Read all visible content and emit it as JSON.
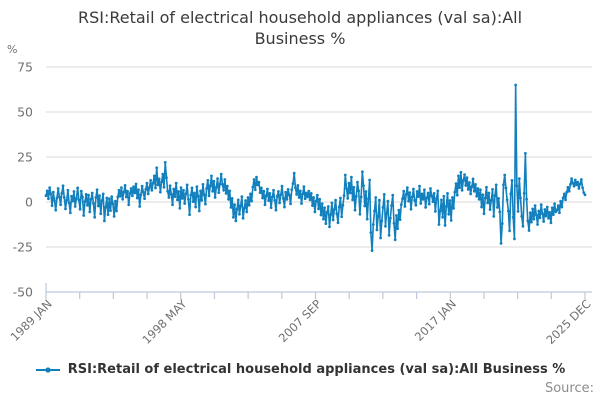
{
  "title_lines": [
    "RSI:Retail of electrical household appliances (val sa):All",
    "Business %"
  ],
  "y_axis_unit": "%",
  "legend": {
    "label": "RSI:Retail of electrical household appliances (val sa):All Business %"
  },
  "footer": {
    "source_label": "Source:"
  },
  "colors": {
    "series": "#1380be",
    "grid": "#d9d9d9",
    "axis": "#bcc9da",
    "tick_text": "#707070",
    "title_text": "#3a3a3a",
    "legend_text": "#333333",
    "source_text": "#8c8c8c"
  },
  "chart_data": {
    "type": "line",
    "title": "RSI:Retail of electrical household appliances (val sa):All Business %",
    "series_name": "RSI:Retail of electrical household appliances (val sa):All Business %",
    "x_start": "1989-01",
    "x_end": "2025-12",
    "frequency": "monthly",
    "x_tick_labels": [
      "1989 JAN",
      "1998 MAY",
      "2007 SEP",
      "2017 JAN",
      "2025 DEC"
    ],
    "x_total_ticks": 17,
    "x_label_every": 4,
    "y_ticks": [
      75,
      50,
      25,
      0,
      -25,
      -50
    ],
    "ylim": [
      -50,
      75
    ],
    "grid": true,
    "legend_position": "bottom",
    "values": [
      3.5,
      6.2,
      1.8,
      8.0,
      4.5,
      -2.0,
      5.5,
      0.8,
      -4.5,
      2.2,
      7.5,
      3.0,
      -1.5,
      4.8,
      9.0,
      2.5,
      -3.8,
      1.0,
      6.5,
      -0.5,
      -6.0,
      3.2,
      0.5,
      5.8,
      -2.5,
      2.0,
      7.8,
      1.2,
      -4.0,
      6.0,
      2.8,
      -7.5,
      0.2,
      4.2,
      -1.8,
      3.8,
      -5.5,
      1.5,
      5.0,
      -0.8,
      -8.5,
      2.5,
      6.8,
      -2.2,
      3.5,
      -6.5,
      0.8,
      4.5,
      -10.5,
      -3.0,
      2.2,
      -7.0,
      1.8,
      -4.8,
      3.0,
      -1.0,
      -8.0,
      0.5,
      -5.0,
      2.8,
      6.5,
      3.2,
      8.0,
      1.5,
      5.5,
      9.2,
      2.8,
      6.0,
      -1.5,
      4.8,
      7.5,
      3.5,
      8.5,
      5.0,
      10.0,
      2.2,
      6.8,
      -2.5,
      4.0,
      8.8,
      5.5,
      1.8,
      7.0,
      10.5,
      4.5,
      8.0,
      12.0,
      6.5,
      10.5,
      14.5,
      7.8,
      19.0,
      9.5,
      12.8,
      5.5,
      11.2,
      15.5,
      8.2,
      22.0,
      13.5,
      6.0,
      2.5,
      9.0,
      4.2,
      -1.5,
      7.2,
      3.0,
      10.5,
      1.2,
      5.8,
      -3.5,
      8.0,
      2.0,
      6.5,
      -0.8,
      4.5,
      9.5,
      1.5,
      -7.0,
      3.8,
      7.8,
      0.2,
      5.0,
      -2.8,
      8.5,
      3.2,
      -5.0,
      6.2,
      1.0,
      9.8,
      4.0,
      -1.2,
      7.5,
      12.0,
      3.5,
      9.0,
      14.5,
      6.0,
      11.5,
      2.5,
      8.2,
      13.0,
      5.2,
      10.0,
      15.5,
      9.8,
      6.5,
      12.5,
      4.8,
      8.8,
      1.5,
      6.2,
      -3.0,
      2.0,
      -8.5,
      -1.5,
      -10.5,
      -4.0,
      1.2,
      -6.8,
      -2.2,
      3.0,
      -9.0,
      -3.5,
      0.8,
      -5.5,
      2.5,
      -1.8,
      4.5,
      0.5,
      8.2,
      12.5,
      6.8,
      13.8,
      9.5,
      11.0,
      5.2,
      7.8,
      2.2,
      6.0,
      -1.5,
      3.5,
      7.2,
      0.8,
      4.8,
      -3.2,
      2.8,
      6.5,
      1.0,
      -4.5,
      3.2,
      5.8,
      -0.5,
      4.0,
      8.8,
      2.0,
      -2.8,
      5.5,
      1.5,
      7.0,
      3.8,
      -1.0,
      6.8,
      10.2,
      16.0,
      8.0,
      4.2,
      9.2,
      2.5,
      6.2,
      -0.8,
      4.5,
      8.5,
      1.8,
      5.0,
      2.8,
      6.0,
      1.2,
      4.8,
      -2.0,
      2.5,
      -5.5,
      0.5,
      3.8,
      -3.8,
      1.5,
      -7.2,
      -1.0,
      -9.5,
      -3.2,
      -12.0,
      -5.8,
      -2.5,
      -13.8,
      -7.0,
      -0.5,
      -10.0,
      -4.2,
      1.0,
      -6.5,
      -11.5,
      -2.8,
      2.2,
      -8.2,
      -1.8,
      3.5,
      15.0,
      7.5,
      2.0,
      10.5,
      5.0,
      13.8,
      1.2,
      8.2,
      -4.5,
      3.2,
      11.0,
      6.2,
      -6.8,
      2.8,
      16.8,
      9.0,
      -2.2,
      5.8,
      -9.5,
      1.8,
      12.2,
      -17.0,
      -27.0,
      -12.5,
      -5.0,
      2.5,
      -15.5,
      -8.0,
      1.0,
      -20.0,
      -10.5,
      -3.0,
      4.2,
      -13.5,
      -6.2,
      0.5,
      -18.5,
      -9.0,
      -2.0,
      3.8,
      -11.8,
      -21.0,
      -7.5,
      -14.8,
      -4.5,
      -9.8,
      -1.5,
      1.8,
      6.0,
      -2.5,
      4.2,
      8.0,
      0.5,
      5.2,
      -4.0,
      2.8,
      7.2,
      1.0,
      -1.8,
      5.8,
      3.0,
      8.8,
      -0.8,
      4.5,
      1.5,
      6.8,
      -3.0,
      2.2,
      5.0,
      -1.2,
      7.5,
      3.5,
      0.2,
      4.8,
      -5.2,
      2.0,
      6.2,
      -12.5,
      -4.8,
      1.2,
      -8.5,
      3.2,
      -13.0,
      -2.5,
      4.8,
      -6.8,
      0.8,
      -10.2,
      2.5,
      -3.5,
      5.5,
      10.2,
      3.8,
      14.5,
      8.0,
      16.5,
      6.5,
      12.0,
      15.2,
      9.2,
      13.5,
      7.0,
      10.8,
      4.5,
      8.5,
      12.8,
      6.0,
      9.8,
      3.2,
      7.5,
      1.5,
      6.8,
      -2.8,
      4.0,
      -6.5,
      2.2,
      8.2,
      -0.5,
      5.0,
      -4.2,
      1.0,
      7.0,
      -8.0,
      3.5,
      9.5,
      -3.0,
      2.0,
      -5.5,
      -23.0,
      -12.0,
      9.5,
      15.0,
      7.8,
      1.2,
      -5.0,
      -16.0,
      4.5,
      12.0,
      -8.5,
      -20.5,
      65.0,
      9.0,
      -5.2,
      13.0,
      2.2,
      -8.0,
      -13.5,
      4.8,
      27.0,
      1.5,
      -10.5,
      -15.8,
      -6.0,
      -11.2,
      -3.8,
      -9.5,
      -2.0,
      -7.2,
      -12.5,
      -5.0,
      -8.8,
      -1.5,
      -6.5,
      -10.8,
      -4.2,
      -7.8,
      -2.8,
      -9.0,
      -5.8,
      -11.5,
      -3.2,
      -7.0,
      -1.0,
      -5.5,
      -4.5,
      -2.0,
      -6.0,
      0.5,
      -2.8,
      2.2,
      4.5,
      1.2,
      5.5,
      8.2,
      6.0,
      9.8,
      13.0,
      10.5,
      8.8,
      12.2,
      9.5,
      11.0,
      7.5,
      10.0,
      12.5,
      8.0,
      5.2,
      4.0
    ]
  }
}
